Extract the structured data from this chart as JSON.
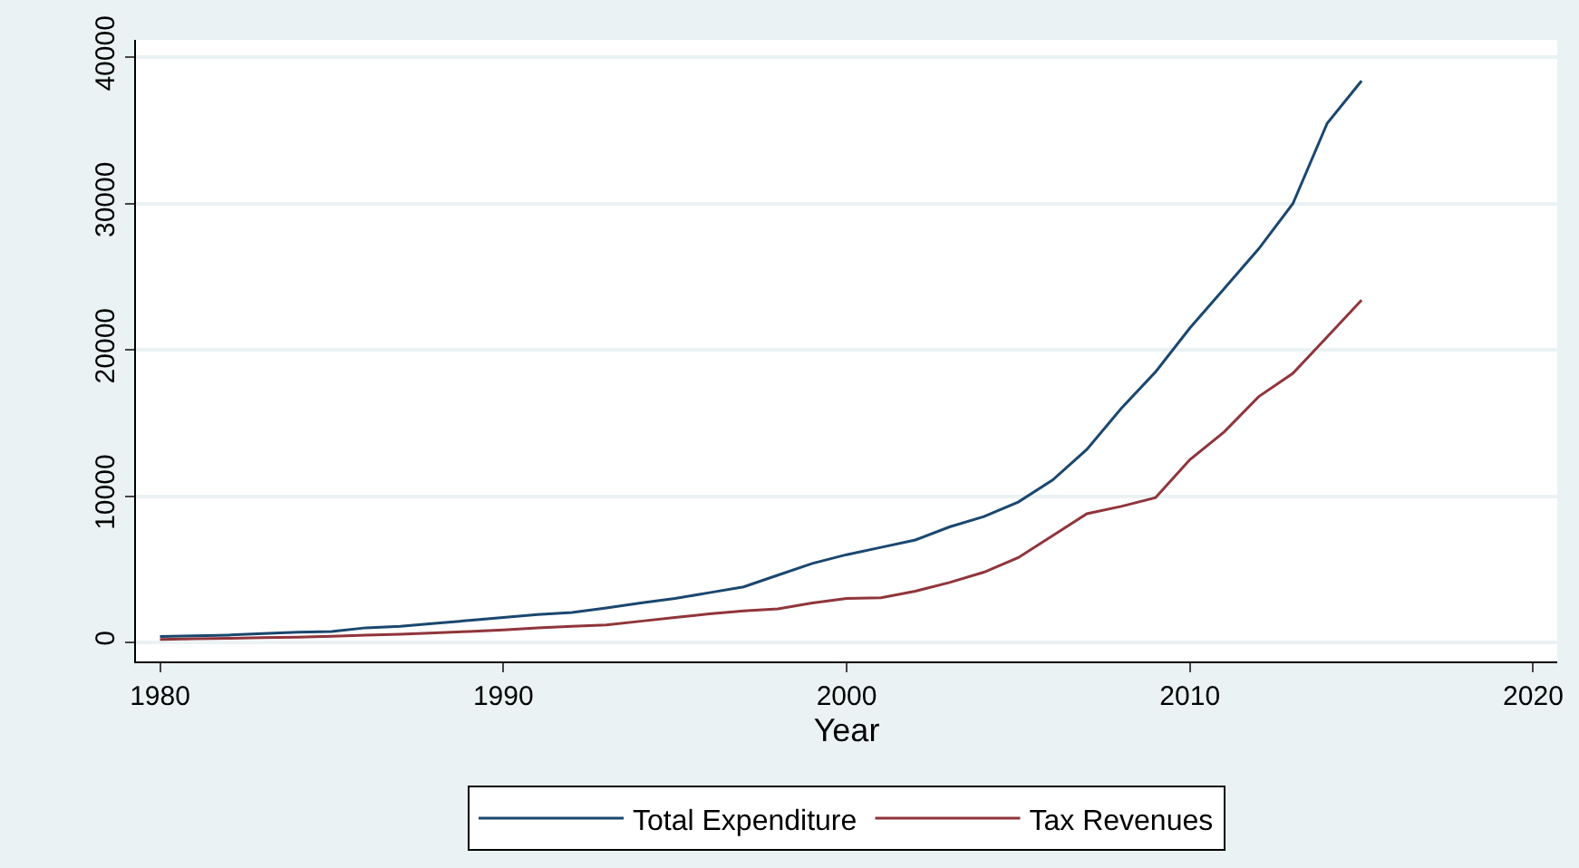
{
  "chart_data": {
    "type": "line",
    "xlabel": "Year",
    "x": [
      1980,
      1981,
      1982,
      1983,
      1984,
      1985,
      1986,
      1987,
      1988,
      1989,
      1990,
      1991,
      1992,
      1993,
      1994,
      1995,
      1996,
      1997,
      1998,
      1999,
      2000,
      2001,
      2002,
      2003,
      2004,
      2005,
      2006,
      2007,
      2008,
      2009,
      2010,
      2011,
      2012,
      2013,
      2014,
      2015
    ],
    "series": [
      {
        "name": "Total Expenditure",
        "color": "#1a476f",
        "values": [
          400,
          450,
          500,
          600,
          700,
          750,
          1000,
          1100,
          1300,
          1500,
          1700,
          1900,
          2050,
          2350,
          2700,
          3000,
          3400,
          3800,
          4600,
          5400,
          6000,
          6500,
          7000,
          7900,
          8600,
          9600,
          11100,
          13200,
          16000,
          18500,
          21500,
          24200,
          26900,
          30000,
          35500,
          38400
        ]
      },
      {
        "name": "Tax Revenues",
        "color": "#90353b",
        "values": [
          200,
          250,
          280,
          320,
          350,
          420,
          500,
          560,
          650,
          750,
          850,
          1000,
          1100,
          1200,
          1450,
          1700,
          1950,
          2150,
          2300,
          2700,
          3000,
          3050,
          3500,
          4100,
          4800,
          5800,
          7300,
          8800,
          9300,
          9900,
          12500,
          14400,
          16800,
          18400,
          20900,
          23400
        ]
      }
    ],
    "xlim": [
      1979.3,
      2020.7
    ],
    "xticks": [
      1980,
      1990,
      2000,
      2010,
      2020
    ],
    "ylim": [
      -1300,
      41200
    ],
    "yticks": [
      0,
      10000,
      20000,
      30000,
      40000
    ],
    "grid": "y",
    "legend": "bottom",
    "marker": "none",
    "line_style": "solid"
  }
}
